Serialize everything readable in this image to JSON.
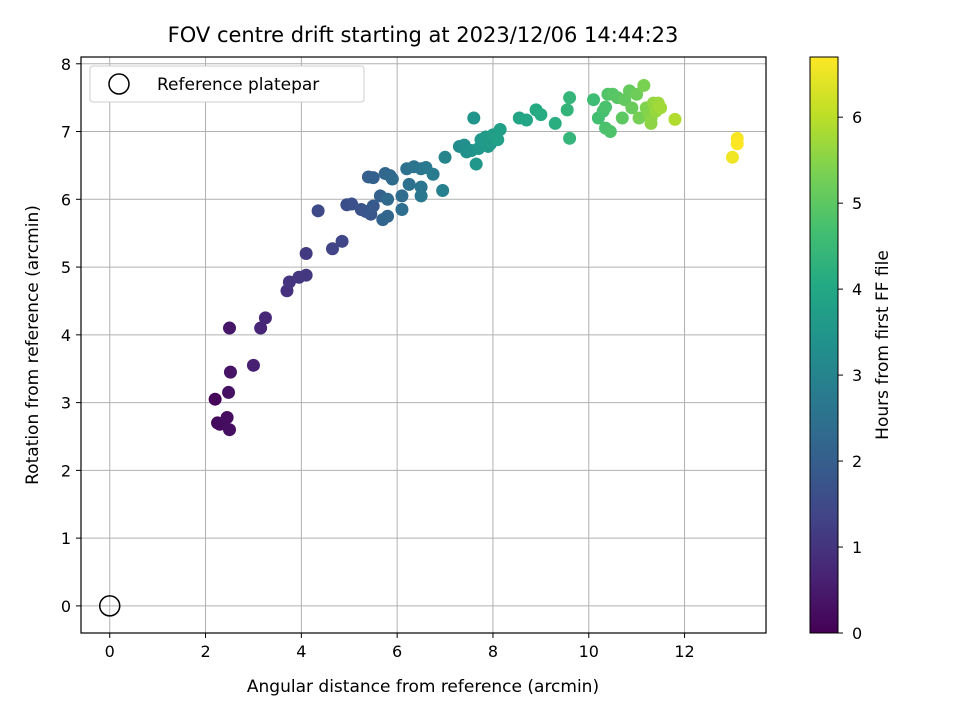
{
  "chart_data": {
    "type": "scatter",
    "title": "FOV centre drift starting at 2023/12/06 14:44:23",
    "xlabel": "Angular distance from reference (arcmin)",
    "ylabel": "Rotation from reference (arcmin)",
    "xlim": [
      -0.6,
      13.7
    ],
    "ylim": [
      -0.4,
      8.1
    ],
    "xticks": [
      0,
      2,
      4,
      6,
      8,
      10,
      12
    ],
    "yticks": [
      0,
      1,
      2,
      3,
      4,
      5,
      6,
      7,
      8
    ],
    "grid": true,
    "legend": {
      "position": "top-left",
      "entries": [
        "Reference platepar"
      ]
    },
    "reference_point": {
      "x": 0,
      "y": 0
    },
    "colorbar": {
      "label": "Hours from first FF file",
      "colormap": "viridis",
      "range": [
        0,
        6.7
      ],
      "ticks": [
        0,
        1,
        2,
        3,
        4,
        5,
        6
      ]
    },
    "points": [
      {
        "x": 2.2,
        "y": 3.05,
        "h": 0.1
      },
      {
        "x": 2.25,
        "y": 2.7,
        "h": 0.15
      },
      {
        "x": 2.3,
        "y": 2.68,
        "h": 0.2
      },
      {
        "x": 2.45,
        "y": 2.78,
        "h": 0.22
      },
      {
        "x": 2.5,
        "y": 2.6,
        "h": 0.25
      },
      {
        "x": 2.48,
        "y": 3.15,
        "h": 0.3
      },
      {
        "x": 2.52,
        "y": 3.45,
        "h": 0.35
      },
      {
        "x": 2.5,
        "y": 4.1,
        "h": 0.4
      },
      {
        "x": 3.0,
        "y": 3.55,
        "h": 0.6
      },
      {
        "x": 3.15,
        "y": 4.1,
        "h": 0.7
      },
      {
        "x": 3.25,
        "y": 4.25,
        "h": 0.75
      },
      {
        "x": 3.7,
        "y": 4.65,
        "h": 0.95
      },
      {
        "x": 3.75,
        "y": 4.78,
        "h": 1.0
      },
      {
        "x": 3.95,
        "y": 4.85,
        "h": 1.05
      },
      {
        "x": 4.1,
        "y": 4.88,
        "h": 1.1
      },
      {
        "x": 4.1,
        "y": 5.2,
        "h": 1.15
      },
      {
        "x": 4.35,
        "y": 5.83,
        "h": 1.5
      },
      {
        "x": 4.65,
        "y": 5.27,
        "h": 1.35
      },
      {
        "x": 4.85,
        "y": 5.38,
        "h": 1.4
      },
      {
        "x": 4.95,
        "y": 5.92,
        "h": 1.6
      },
      {
        "x": 5.05,
        "y": 5.93,
        "h": 1.65
      },
      {
        "x": 5.25,
        "y": 5.85,
        "h": 1.7
      },
      {
        "x": 5.35,
        "y": 5.82,
        "h": 1.75
      },
      {
        "x": 5.45,
        "y": 5.78,
        "h": 1.8
      },
      {
        "x": 5.5,
        "y": 5.9,
        "h": 1.85
      },
      {
        "x": 5.4,
        "y": 6.33,
        "h": 2.0
      },
      {
        "x": 5.5,
        "y": 6.32,
        "h": 2.05
      },
      {
        "x": 5.65,
        "y": 6.05,
        "h": 2.1
      },
      {
        "x": 5.7,
        "y": 5.7,
        "h": 2.15
      },
      {
        "x": 5.8,
        "y": 5.75,
        "h": 2.2
      },
      {
        "x": 5.75,
        "y": 6.38,
        "h": 2.2
      },
      {
        "x": 5.85,
        "y": 6.35,
        "h": 2.25
      },
      {
        "x": 5.8,
        "y": 6.0,
        "h": 2.3
      },
      {
        "x": 5.9,
        "y": 6.3,
        "h": 2.3
      },
      {
        "x": 6.1,
        "y": 6.05,
        "h": 2.35
      },
      {
        "x": 6.1,
        "y": 5.85,
        "h": 2.4
      },
      {
        "x": 6.2,
        "y": 6.45,
        "h": 2.5
      },
      {
        "x": 6.25,
        "y": 6.22,
        "h": 2.5
      },
      {
        "x": 6.35,
        "y": 6.48,
        "h": 2.55
      },
      {
        "x": 6.5,
        "y": 6.45,
        "h": 2.6
      },
      {
        "x": 6.5,
        "y": 6.18,
        "h": 2.6
      },
      {
        "x": 6.5,
        "y": 6.05,
        "h": 2.65
      },
      {
        "x": 6.6,
        "y": 6.47,
        "h": 2.7
      },
      {
        "x": 6.75,
        "y": 6.37,
        "h": 2.75
      },
      {
        "x": 6.95,
        "y": 6.13,
        "h": 2.9
      },
      {
        "x": 7.0,
        "y": 6.62,
        "h": 3.0
      },
      {
        "x": 7.3,
        "y": 6.78,
        "h": 3.2
      },
      {
        "x": 7.4,
        "y": 6.8,
        "h": 3.3
      },
      {
        "x": 7.45,
        "y": 6.7,
        "h": 3.35
      },
      {
        "x": 7.55,
        "y": 6.72,
        "h": 3.4
      },
      {
        "x": 7.6,
        "y": 7.2,
        "h": 3.45
      },
      {
        "x": 7.65,
        "y": 6.52,
        "h": 3.5
      },
      {
        "x": 7.7,
        "y": 6.75,
        "h": 3.5
      },
      {
        "x": 7.75,
        "y": 6.88,
        "h": 3.55
      },
      {
        "x": 7.85,
        "y": 6.92,
        "h": 3.6
      },
      {
        "x": 7.9,
        "y": 6.78,
        "h": 3.6
      },
      {
        "x": 7.95,
        "y": 6.82,
        "h": 3.65
      },
      {
        "x": 8.0,
        "y": 6.95,
        "h": 3.7
      },
      {
        "x": 8.1,
        "y": 6.88,
        "h": 3.75
      },
      {
        "x": 8.15,
        "y": 7.03,
        "h": 3.75
      },
      {
        "x": 8.55,
        "y": 7.2,
        "h": 3.9
      },
      {
        "x": 8.7,
        "y": 7.17,
        "h": 3.95
      },
      {
        "x": 8.9,
        "y": 7.32,
        "h": 4.05
      },
      {
        "x": 9.0,
        "y": 7.25,
        "h": 4.1
      },
      {
        "x": 9.3,
        "y": 7.12,
        "h": 4.2
      },
      {
        "x": 9.55,
        "y": 7.32,
        "h": 4.35
      },
      {
        "x": 9.6,
        "y": 7.5,
        "h": 4.4
      },
      {
        "x": 9.6,
        "y": 6.9,
        "h": 4.4
      },
      {
        "x": 10.1,
        "y": 7.47,
        "h": 4.6
      },
      {
        "x": 10.2,
        "y": 7.2,
        "h": 4.65
      },
      {
        "x": 10.3,
        "y": 7.3,
        "h": 4.7
      },
      {
        "x": 10.35,
        "y": 7.36,
        "h": 4.75
      },
      {
        "x": 10.35,
        "y": 7.05,
        "h": 4.75
      },
      {
        "x": 10.45,
        "y": 7.0,
        "h": 4.8
      },
      {
        "x": 10.4,
        "y": 7.55,
        "h": 4.85
      },
      {
        "x": 10.5,
        "y": 7.55,
        "h": 4.9
      },
      {
        "x": 10.6,
        "y": 7.5,
        "h": 4.95
      },
      {
        "x": 10.7,
        "y": 7.2,
        "h": 5.0
      },
      {
        "x": 10.75,
        "y": 7.47,
        "h": 5.05
      },
      {
        "x": 10.85,
        "y": 7.6,
        "h": 5.1
      },
      {
        "x": 10.9,
        "y": 7.35,
        "h": 5.15
      },
      {
        "x": 11.0,
        "y": 7.55,
        "h": 5.2
      },
      {
        "x": 11.05,
        "y": 7.2,
        "h": 5.3
      },
      {
        "x": 11.15,
        "y": 7.68,
        "h": 5.35
      },
      {
        "x": 11.2,
        "y": 7.35,
        "h": 5.4
      },
      {
        "x": 11.25,
        "y": 7.25,
        "h": 5.45
      },
      {
        "x": 11.3,
        "y": 7.2,
        "h": 5.5
      },
      {
        "x": 11.3,
        "y": 7.12,
        "h": 5.55
      },
      {
        "x": 11.35,
        "y": 7.42,
        "h": 5.6
      },
      {
        "x": 11.4,
        "y": 7.3,
        "h": 5.65
      },
      {
        "x": 11.45,
        "y": 7.42,
        "h": 5.7
      },
      {
        "x": 11.5,
        "y": 7.35,
        "h": 5.75
      },
      {
        "x": 11.8,
        "y": 7.18,
        "h": 5.9
      },
      {
        "x": 13.0,
        "y": 6.62,
        "h": 6.55
      },
      {
        "x": 13.1,
        "y": 6.9,
        "h": 6.65
      },
      {
        "x": 13.1,
        "y": 6.82,
        "h": 6.7
      }
    ]
  }
}
